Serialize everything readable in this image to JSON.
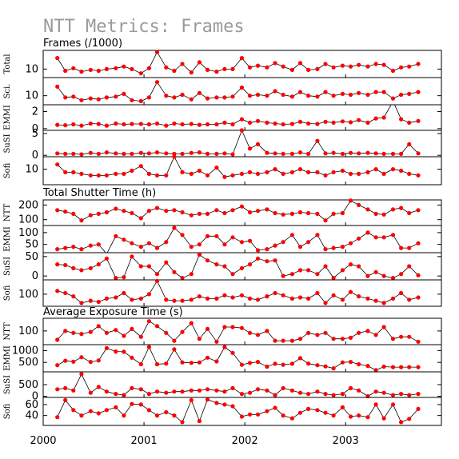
{
  "title": "NTT Metrics: Frames",
  "chart_data": {
    "type": "line",
    "x_tick_labels": [
      "2000",
      "2001",
      "2002",
      "2003"
    ],
    "x_tick_values": [
      2000,
      2001,
      2002,
      2003
    ],
    "x_range": [
      2000,
      2003.95
    ],
    "x_months": [
      2000.14,
      2000.22,
      2000.3,
      2000.38,
      2000.47,
      2000.55,
      2000.63,
      2000.72,
      2000.8,
      2000.88,
      2000.97,
      2001.05,
      2001.13,
      2001.22,
      2001.3,
      2001.38,
      2001.47,
      2001.55,
      2001.63,
      2001.72,
      2001.8,
      2001.88,
      2001.97,
      2002.05,
      2002.13,
      2002.22,
      2002.3,
      2002.38,
      2002.47,
      2002.55,
      2002.63,
      2002.72,
      2002.8,
      2002.88,
      2002.97,
      2003.05,
      2003.13,
      2003.22,
      2003.3,
      2003.38,
      2003.47,
      2003.55,
      2003.63,
      2003.72
    ],
    "sections": [
      {
        "title": "Frames (/1000)",
        "panels": [
          {
            "label": "Total",
            "tick_labels": [
              "10"
            ],
            "tick_values": [
              10
            ],
            "ylim": [
              0,
              32
            ],
            "values": [
              23,
              8,
              11,
              7,
              9,
              8,
              10,
              11,
              13,
              10,
              5,
              11,
              30,
              12,
              8,
              16,
              6,
              18,
              9,
              7,
              10,
              10,
              23,
              12,
              14,
              12,
              17,
              13,
              9,
              17,
              9,
              10,
              16,
              12,
              14,
              13,
              15,
              13,
              16,
              15,
              8,
              12,
              13,
              16
            ]
          },
          {
            "label": "Sci.",
            "tick_labels": [
              "10"
            ],
            "tick_values": [
              10
            ],
            "ylim": [
              0,
              30
            ],
            "values": [
              20,
              8,
              9,
              5,
              7,
              6,
              8,
              9,
              12,
              5,
              4,
              8,
              25,
              10,
              8,
              11,
              6,
              13,
              7,
              8,
              8,
              9,
              19,
              10,
              11,
              10,
              15,
              11,
              9,
              14,
              10,
              9,
              14,
              10,
              12,
              11,
              13,
              11,
              14,
              14,
              7,
              11,
              12,
              14
            ]
          },
          {
            "label": "EMMI",
            "tick_labels": [
              "2",
              "0"
            ],
            "tick_values": [
              2,
              0
            ],
            "ylim": [
              -0.2,
              2.8
            ],
            "values": [
              0.45,
              0.4,
              0.5,
              0.35,
              0.6,
              0.55,
              0.35,
              0.6,
              0.5,
              0.55,
              0.55,
              0.5,
              0.6,
              0.35,
              0.6,
              0.5,
              0.55,
              0.45,
              0.5,
              0.5,
              0.7,
              0.5,
              1.1,
              0.7,
              0.9,
              0.7,
              0.6,
              0.5,
              0.55,
              0.8,
              0.6,
              0.55,
              0.8,
              0.7,
              0.85,
              0.75,
              1.0,
              0.7,
              1.2,
              1.3,
              3.2,
              1.1,
              0.7,
              0.9
            ]
          },
          {
            "label": "SuSI",
            "tick_labels": [
              "5",
              "0"
            ],
            "tick_values": [
              5,
              0
            ],
            "ylim": [
              -0.3,
              5.2
            ],
            "values": [
              0.4,
              0.3,
              0.3,
              0.2,
              0.5,
              0.3,
              0.6,
              0.4,
              0.3,
              0.3,
              0.5,
              0.4,
              0.6,
              0.4,
              0.3,
              0.3,
              0.5,
              0.6,
              0.3,
              0.3,
              0.4,
              0.2,
              5.2,
              1.4,
              2.3,
              0.5,
              0.4,
              0.3,
              0.3,
              0.6,
              0.3,
              3.0,
              0.4,
              0.5,
              0.3,
              0.5,
              0.4,
              0.5,
              0.4,
              0.3,
              0.3,
              0.3,
              2.3,
              0.4
            ]
          },
          {
            "label": "Sofi",
            "tick_labels": [
              "10"
            ],
            "tick_values": [
              10
            ],
            "ylim": [
              0,
              18
            ],
            "values": [
              13,
              8,
              8,
              7,
              6,
              6,
              6,
              7,
              7,
              9,
              12,
              7,
              6,
              6,
              18,
              8,
              7,
              9,
              6,
              11,
              5,
              6,
              7,
              8,
              7,
              8,
              10,
              7,
              8,
              10,
              8,
              8,
              6,
              8,
              9,
              7,
              7,
              8,
              10,
              7,
              10,
              9,
              7,
              6
            ]
          }
        ]
      },
      {
        "title": "Total Shutter Time (h)",
        "panels": [
          {
            "label": "NTT",
            "tick_labels": [
              "200",
              "100"
            ],
            "tick_values": [
              200,
              100
            ],
            "ylim": [
              60,
              235
            ],
            "values": [
              165,
              155,
              140,
              95,
              130,
              140,
              150,
              175,
              160,
              145,
              110,
              160,
              180,
              160,
              165,
              150,
              130,
              140,
              140,
              165,
              145,
              165,
              190,
              150,
              160,
              170,
              145,
              135,
              140,
              150,
              145,
              140,
              95,
              140,
              145,
              230,
              200,
              170,
              140,
              135,
              170,
              180,
              145,
              165
            ]
          },
          {
            "label": "EMMI",
            "tick_labels": [
              "100",
              "50"
            ],
            "tick_values": [
              100,
              50
            ],
            "ylim": [
              15,
              130
            ],
            "values": [
              30,
              35,
              40,
              30,
              45,
              50,
              10,
              85,
              70,
              55,
              40,
              55,
              35,
              60,
              120,
              90,
              40,
              50,
              85,
              85,
              50,
              80,
              60,
              65,
              25,
              30,
              45,
              60,
              90,
              40,
              60,
              90,
              30,
              35,
              40,
              55,
              75,
              100,
              80,
              80,
              90,
              35,
              35,
              55
            ]
          },
          {
            "label": "SuSI",
            "tick_labels": [
              "50",
              "0"
            ],
            "tick_values": [
              50,
              0
            ],
            "ylim": [
              -10,
              60
            ],
            "values": [
              30,
              28,
              20,
              15,
              20,
              30,
              45,
              -5,
              -3,
              50,
              25,
              25,
              5,
              35,
              10,
              -5,
              5,
              55,
              40,
              30,
              25,
              5,
              20,
              30,
              45,
              38,
              40,
              0,
              5,
              15,
              15,
              5,
              25,
              -5,
              15,
              30,
              25,
              0,
              10,
              0,
              -5,
              5,
              25,
              2
            ]
          },
          {
            "label": "Sofi",
            "tick_labels": [
              "100"
            ],
            "tick_values": [
              100
            ],
            "ylim": [
              45,
              165
            ],
            "values": [
              115,
              105,
              90,
              60,
              70,
              65,
              80,
              85,
              105,
              75,
              80,
              100,
              160,
              75,
              70,
              70,
              75,
              90,
              80,
              80,
              95,
              85,
              95,
              80,
              75,
              90,
              105,
              95,
              80,
              85,
              80,
              105,
              60,
              95,
              75,
              110,
              90,
              80,
              70,
              60,
              80,
              105,
              75,
              85
            ]
          }
        ]
      },
      {
        "title": "Average Exposure Time (s)",
        "panels": [
          {
            "label": "NTT",
            "tick_labels": [
              "100"
            ],
            "tick_values": [
              100
            ],
            "ylim": [
              30,
              165
            ],
            "values": [
              55,
              100,
              90,
              85,
              95,
              125,
              90,
              105,
              75,
              110,
              70,
              150,
              125,
              90,
              50,
              95,
              140,
              60,
              110,
              45,
              120,
              120,
              115,
              90,
              80,
              100,
              50,
              50,
              50,
              60,
              90,
              80,
              90,
              60,
              60,
              65,
              90,
              100,
              80,
              120,
              60,
              70,
              70,
              45
            ]
          },
          {
            "label": "EMMI",
            "tick_labels": [
              "1000",
              "500"
            ],
            "tick_values": [
              1000,
              500
            ],
            "ylim": [
              100,
              1250
            ],
            "values": [
              380,
              570,
              530,
              720,
              520,
              580,
              1100,
              960,
              950,
              700,
              420,
              1150,
              420,
              450,
              1050,
              500,
              480,
              500,
              700,
              540,
              1150,
              900,
              400,
              480,
              520,
              320,
              440,
              400,
              440,
              680,
              450,
              380,
              330,
              250,
              500,
              520,
              420,
              350,
              170,
              320,
              300,
              300,
              300,
              300
            ]
          },
          {
            "label": "SuSI",
            "tick_labels": [
              "500",
              "0"
            ],
            "tick_values": [
              500,
              0
            ],
            "ylim": [
              -50,
              1050
            ],
            "values": [
              300,
              350,
              250,
              950,
              150,
              400,
              200,
              100,
              50,
              350,
              300,
              100,
              200,
              150,
              200,
              200,
              250,
              250,
              300,
              250,
              200,
              350,
              100,
              150,
              300,
              250,
              50,
              350,
              250,
              150,
              100,
              200,
              100,
              50,
              100,
              350,
              250,
              0,
              200,
              150,
              50,
              100,
              50,
              100
            ]
          },
          {
            "label": "Sofi",
            "tick_labels": [
              "60",
              "40"
            ],
            "tick_values": [
              60,
              40
            ],
            "ylim": [
              22,
              73
            ],
            "values": [
              37,
              68,
              50,
              40,
              48,
              44,
              50,
              55,
              40,
              61,
              60,
              50,
              40,
              46,
              40,
              28,
              68,
              30,
              69,
              63,
              60,
              57,
              38,
              42,
              42,
              48,
              54,
              40,
              35,
              45,
              52,
              50,
              45,
              40,
              55,
              38,
              40,
              37,
              60,
              35,
              60,
              28,
              34,
              52
            ]
          }
        ]
      }
    ]
  }
}
